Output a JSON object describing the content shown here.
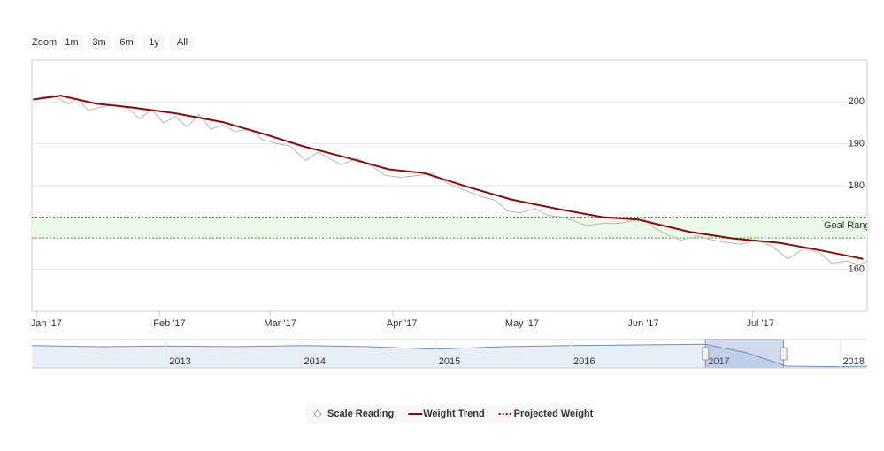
{
  "chart_data": {
    "type": "line",
    "zoom_label": "Zoom",
    "zoom_buttons": [
      "1m",
      "3m",
      "6m",
      "1y",
      "All"
    ],
    "series": [
      {
        "name": "Scale Reading",
        "color": "#b5b5b5",
        "x": [
          0,
          4,
          8,
          10,
          13,
          17,
          20,
          23,
          26,
          29,
          32,
          35,
          38,
          41,
          44,
          47,
          50,
          54,
          57,
          61,
          64,
          68,
          71,
          74,
          77,
          81,
          85,
          88,
          92,
          97,
          100,
          104,
          108,
          112,
          116,
          119,
          122,
          126,
          129,
          133,
          136,
          139,
          143,
          147,
          150,
          153,
          156,
          160,
          163,
          167,
          171,
          174,
          178,
          182,
          186,
          190,
          194,
          198,
          201,
          205,
          208,
          210
        ],
        "values": [
          200.8,
          201.6,
          199.5,
          201.0,
          198.0,
          199.0,
          199.2,
          198.5,
          196.0,
          198.2,
          195.0,
          196.5,
          194.0,
          197.0,
          193.5,
          194.5,
          193.0,
          193.5,
          191.0,
          190.0,
          189.5,
          186.0,
          188.0,
          186.5,
          185.0,
          186.5,
          184.5,
          182.5,
          182.0,
          182.5,
          183.0,
          180.5,
          179.0,
          177.5,
          176.5,
          174.0,
          173.5,
          174.5,
          173.0,
          172.5,
          171.5,
          170.5,
          171.0,
          171.0,
          171.5,
          172.5,
          170.0,
          168.0,
          167.0,
          168.0,
          167.0,
          166.5,
          166.0,
          167.0,
          165.5,
          162.5,
          165.0,
          164.0,
          161.5,
          162.0,
          161.0,
          162.0
        ]
      },
      {
        "name": "Weight Trend",
        "color": "#8b0a0a",
        "x": [
          -1,
          6,
          15,
          24,
          35,
          47,
          58,
          67,
          78,
          89,
          98,
          109,
          120,
          132,
          143,
          152,
          165,
          176,
          188,
          199,
          209
        ],
        "values": [
          200.6,
          201.5,
          199.6,
          198.7,
          197.3,
          195.2,
          192.2,
          189.5,
          186.8,
          183.9,
          183.0,
          179.7,
          176.7,
          174.4,
          172.5,
          171.9,
          169.0,
          167.4,
          166.3,
          164.4,
          162.5
        ]
      },
      {
        "name": "Projected Weight",
        "color": "#8b0a0a",
        "dash": true,
        "x": [],
        "values": []
      }
    ],
    "xlim": [
      -1.3,
      210
    ],
    "xticks": [
      {
        "value": 0,
        "label": "Jan '17"
      },
      {
        "value": 31,
        "label": "Feb '17"
      },
      {
        "value": 59,
        "label": "Mar '17"
      },
      {
        "value": 90,
        "label": "Apr '17"
      },
      {
        "value": 120,
        "label": "May '17"
      },
      {
        "value": 151,
        "label": "Jun '17"
      },
      {
        "value": 181,
        "label": "Jul '17"
      }
    ],
    "ylim": [
      150,
      210
    ],
    "yticks": [
      160,
      170,
      180,
      190,
      200
    ],
    "grid": true,
    "plot_band": {
      "from": 167.5,
      "to": 172.5,
      "label": "Goal Range",
      "color": "#3f9a3f"
    },
    "navigator": {
      "xlim": [
        2012,
        2018.2
      ],
      "xticks": [
        2013,
        2014,
        2015,
        2016,
        2017,
        2018
      ],
      "ylim": [
        160,
        202
      ],
      "color": "#6d8fc4",
      "x": [
        2012,
        2012.5,
        2013,
        2013.5,
        2014,
        2014.5,
        2015,
        2015.5,
        2016,
        2016.5,
        2017,
        2017.3,
        2017.6,
        2018,
        2018.2
      ],
      "values": [
        198,
        196,
        197,
        196,
        198,
        196,
        192,
        196,
        198,
        199,
        200,
        186,
        163,
        162,
        163
      ],
      "selected": [
        2017,
        2017.58
      ]
    },
    "legend": "bottom"
  }
}
